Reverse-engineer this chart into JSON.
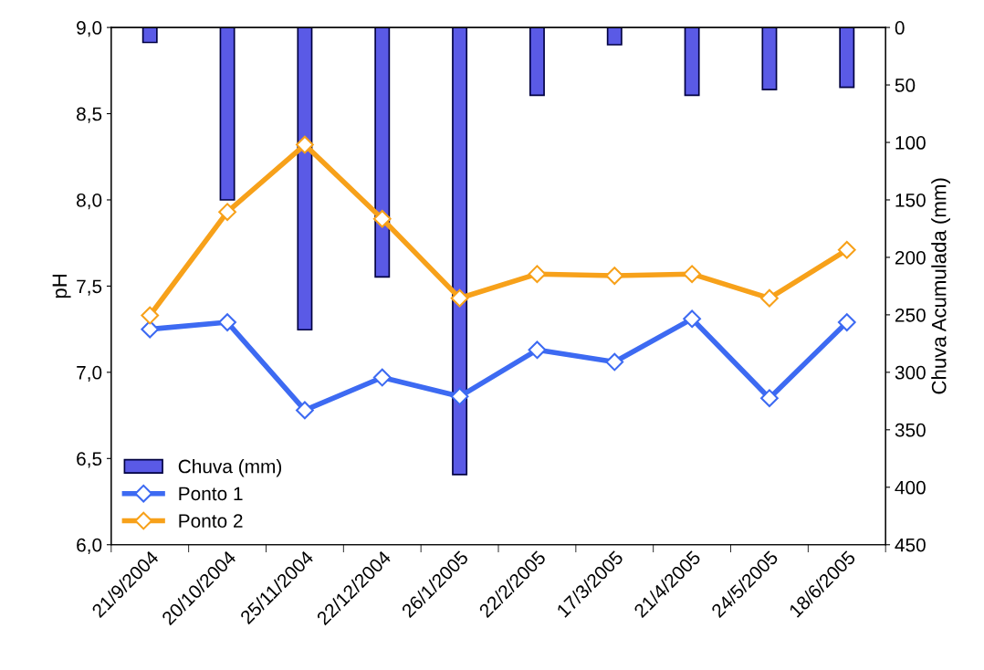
{
  "chart_data": {
    "type": "line",
    "xlabel": null,
    "ylabel": "pH",
    "y2label": "Chuva Acumulada (mm)",
    "categories": [
      "21/9/2004",
      "20/10/2004",
      "25/11/2004",
      "22/12/2004",
      "26/1/2005",
      "22/2/2005",
      "17/3/2005",
      "21/4/2005",
      "24/5/2005",
      "18/6/2005"
    ],
    "series": [
      {
        "name": "Chuva (mm)",
        "type": "bar",
        "axis": "y2",
        "color": "#5a5ae6",
        "values": [
          13,
          150,
          263,
          217,
          389,
          59,
          15,
          59,
          54,
          52
        ]
      },
      {
        "name": "Ponto 1",
        "color": "#3d6af2",
        "values": [
          7.25,
          7.29,
          6.78,
          6.97,
          6.86,
          7.13,
          7.06,
          7.31,
          6.85,
          7.29
        ]
      },
      {
        "name": "Ponto 2",
        "color": "#f7a11a",
        "values": [
          7.33,
          7.93,
          8.32,
          7.89,
          7.43,
          7.57,
          7.56,
          7.57,
          7.43,
          7.71
        ]
      }
    ],
    "ylim": [
      6.0,
      9.0
    ],
    "yticks": [
      {
        "value": 6.0,
        "label": "6,0"
      },
      {
        "value": 6.5,
        "label": "6,5"
      },
      {
        "value": 7.0,
        "label": "7,0"
      },
      {
        "value": 7.5,
        "label": "7,5"
      },
      {
        "value": 8.0,
        "label": "8,0"
      },
      {
        "value": 8.5,
        "label": "8,5"
      },
      {
        "value": 9.0,
        "label": "9,0"
      }
    ],
    "y2lim": [
      450,
      0
    ],
    "y2ticks": [
      0,
      50,
      100,
      150,
      200,
      250,
      300,
      350,
      400,
      450
    ],
    "marker": "diamond",
    "line_style": "solid",
    "grid": false,
    "legend": "bottom left"
  }
}
